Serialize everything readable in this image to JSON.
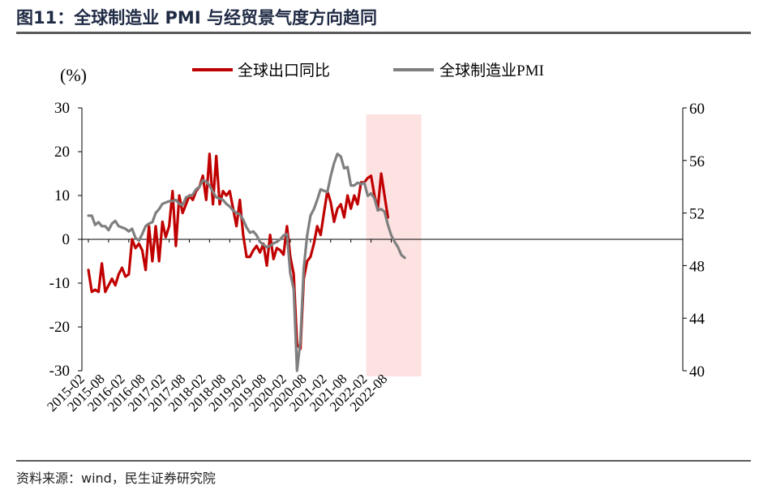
{
  "figure": {
    "title": "图11：全球制造业 PMI 与经贸景气度方向趋同",
    "source": "资料来源：wind，民生证券研究院"
  },
  "chart_data": {
    "type": "line",
    "left_axis": {
      "unit_label": "(%)",
      "min": -30,
      "max": 30,
      "ticks": [
        "30",
        "20",
        "10",
        "0",
        "-10",
        "-20",
        "-30"
      ]
    },
    "right_axis": {
      "min": 40,
      "max": 60,
      "ticks": [
        "60",
        "56",
        "52",
        "48",
        "44",
        "40"
      ]
    },
    "x_ticks": [
      "2015-02",
      "2015-08",
      "2016-02",
      "2016-08",
      "2017-02",
      "2017-08",
      "2018-02",
      "2018-08",
      "2019-02",
      "2019-08",
      "2020-02",
      "2020-08",
      "2021-02",
      "2021-08",
      "2022-02",
      "2022-08"
    ],
    "highlight": {
      "from": "2022-02",
      "to": "2022-12",
      "color": "#fde2e2"
    },
    "series": [
      {
        "name": "全球出口同比",
        "axis": "left",
        "color": "#c00000",
        "x": [
          "2015-02",
          "2015-03",
          "2015-04",
          "2015-05",
          "2015-06",
          "2015-07",
          "2015-08",
          "2015-09",
          "2015-10",
          "2015-11",
          "2015-12",
          "2016-01",
          "2016-02",
          "2016-03",
          "2016-04",
          "2016-05",
          "2016-06",
          "2016-07",
          "2016-08",
          "2016-09",
          "2016-10",
          "2016-11",
          "2016-12",
          "2017-01",
          "2017-02",
          "2017-03",
          "2017-04",
          "2017-05",
          "2017-06",
          "2017-07",
          "2017-08",
          "2017-09",
          "2017-10",
          "2017-11",
          "2017-12",
          "2018-01",
          "2018-02",
          "2018-03",
          "2018-04",
          "2018-05",
          "2018-06",
          "2018-07",
          "2018-08",
          "2018-09",
          "2018-10",
          "2018-11",
          "2018-12",
          "2019-01",
          "2019-02",
          "2019-03",
          "2019-04",
          "2019-05",
          "2019-06",
          "2019-07",
          "2019-08",
          "2019-09",
          "2019-10",
          "2019-11",
          "2019-12",
          "2020-01",
          "2020-02",
          "2020-03",
          "2020-04",
          "2020-05",
          "2020-06",
          "2020-07",
          "2020-08",
          "2020-09",
          "2020-10",
          "2020-11",
          "2020-12",
          "2021-01",
          "2021-02",
          "2021-03",
          "2021-04",
          "2021-05",
          "2021-06",
          "2021-07",
          "2021-08",
          "2021-09",
          "2021-10",
          "2021-11",
          "2021-12",
          "2022-01",
          "2022-02",
          "2022-03",
          "2022-04",
          "2022-05",
          "2022-06",
          "2022-07"
        ],
        "values": [
          -7,
          -12,
          -11.5,
          -12,
          -5.5,
          -12,
          -10.5,
          -9,
          -10.5,
          -8,
          -6.5,
          -8.5,
          -8,
          0,
          -2,
          -1,
          -2.5,
          -7,
          3,
          -5,
          3,
          -5,
          4,
          0.5,
          3,
          11,
          -1.5,
          10,
          6,
          8,
          10,
          9,
          11,
          12,
          14.5,
          9,
          19.5,
          8,
          19,
          8,
          11,
          10,
          11,
          7,
          3,
          9,
          1,
          -4,
          -4,
          -2.5,
          -1.5,
          -3,
          -1,
          -6,
          1,
          -4.5,
          -2,
          -2.5,
          -3.5,
          3,
          -4,
          -8,
          -24,
          -25,
          -9,
          -5,
          -4,
          -1,
          3,
          1,
          6,
          11,
          8.5,
          4,
          7,
          8,
          5,
          10,
          7,
          10,
          8,
          13,
          13,
          14,
          14.5,
          10,
          7,
          15,
          10,
          5
        ]
      },
      {
        "name": "全球制造业PMI",
        "axis": "right",
        "color": "#7f7f7f",
        "x": [
          "2015-02",
          "2015-03",
          "2015-04",
          "2015-05",
          "2015-06",
          "2015-07",
          "2015-08",
          "2015-09",
          "2015-10",
          "2015-11",
          "2015-12",
          "2016-01",
          "2016-02",
          "2016-03",
          "2016-04",
          "2016-05",
          "2016-06",
          "2016-07",
          "2016-08",
          "2016-09",
          "2016-10",
          "2016-11",
          "2016-12",
          "2017-01",
          "2017-02",
          "2017-03",
          "2017-04",
          "2017-05",
          "2017-06",
          "2017-07",
          "2017-08",
          "2017-09",
          "2017-10",
          "2017-11",
          "2017-12",
          "2018-01",
          "2018-02",
          "2018-03",
          "2018-04",
          "2018-05",
          "2018-06",
          "2018-07",
          "2018-08",
          "2018-09",
          "2018-10",
          "2018-11",
          "2018-12",
          "2019-01",
          "2019-02",
          "2019-03",
          "2019-04",
          "2019-05",
          "2019-06",
          "2019-07",
          "2019-08",
          "2019-09",
          "2019-10",
          "2019-11",
          "2019-12",
          "2020-01",
          "2020-02",
          "2020-03",
          "2020-04",
          "2020-05",
          "2020-06",
          "2020-07",
          "2020-08",
          "2020-09",
          "2020-10",
          "2020-11",
          "2020-12",
          "2021-01",
          "2021-02",
          "2021-03",
          "2021-04",
          "2021-05",
          "2021-06",
          "2021-07",
          "2021-08",
          "2021-09",
          "2021-10",
          "2021-11",
          "2021-12",
          "2022-01",
          "2022-02",
          "2022-03",
          "2022-04",
          "2022-05",
          "2022-06",
          "2022-07",
          "2022-08",
          "2022-09",
          "2022-10",
          "2022-11",
          "2022-12"
        ],
        "values": [
          51.8,
          51.8,
          51.1,
          51.3,
          51,
          51,
          50.7,
          51.2,
          51.4,
          51,
          50.9,
          50.8,
          50.6,
          50.8,
          50.1,
          49.9,
          50.4,
          51,
          51.2,
          51.3,
          52,
          52.3,
          52.7,
          52.8,
          52.9,
          52.9,
          53,
          52.7,
          52.6,
          53.2,
          53.3,
          53.4,
          53.8,
          54,
          54.5,
          54.4,
          54.1,
          53.6,
          53.2,
          53.1,
          53,
          52.7,
          52.5,
          52.2,
          52,
          51.9,
          51.5,
          50.9,
          50.5,
          50.6,
          50.3,
          49.8,
          49.6,
          49.4,
          49.5,
          49.7,
          49.8,
          50,
          50.3,
          50.4,
          47.4,
          46.2,
          40,
          42.3,
          47.8,
          50.3,
          51.8,
          52.3,
          53,
          53.8,
          53.7,
          53.6,
          54.8,
          55.8,
          56.5,
          56.3,
          55.4,
          55.5,
          54.1,
          54.1,
          54.3,
          54.2,
          54.3,
          53.3,
          53.5,
          53.1,
          52.2,
          52.3,
          52.1,
          51.1,
          50.3,
          49.8,
          49.4,
          48.8,
          48.6
        ]
      }
    ]
  }
}
